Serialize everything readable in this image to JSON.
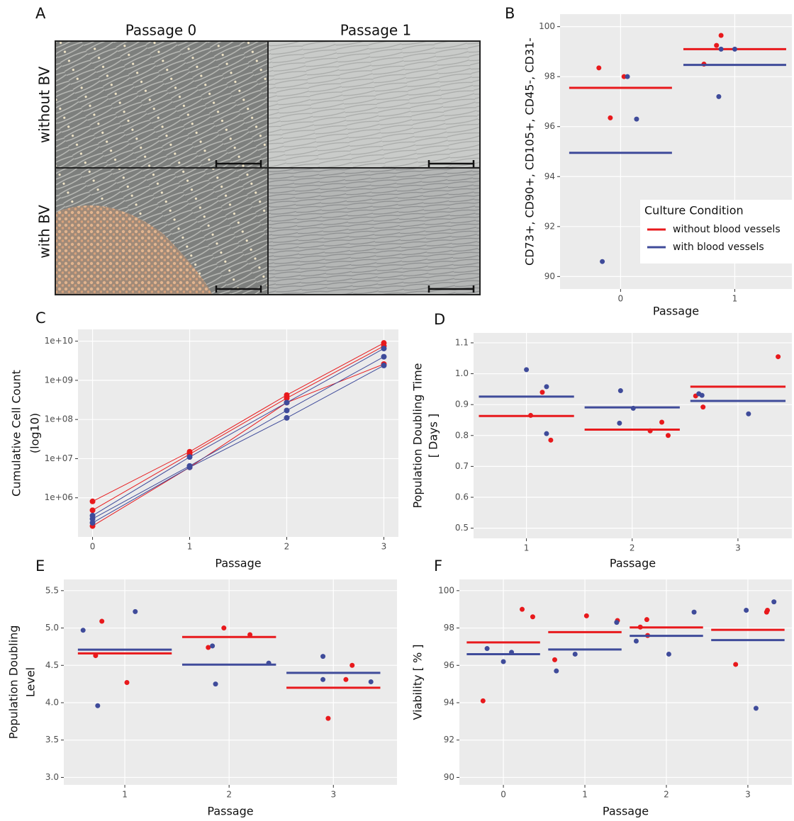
{
  "image_panel": {
    "letter": "A",
    "columns": [
      "Passage 0",
      "Passage 1"
    ],
    "rows": [
      "without BV",
      "with BV"
    ]
  },
  "chart_data": [
    {
      "panel": "B",
      "type": "dot-mean",
      "ylabel": [
        "CD73+, CD90+, CD105+, CD45-, CD31-"
      ],
      "xlabel": "Passage",
      "xlim": [
        -0.53,
        1.5
      ],
      "ylim": [
        89.5,
        100.5
      ],
      "xticks": [
        0,
        1
      ],
      "yticks": [
        90,
        92,
        94,
        96,
        98,
        100
      ],
      "grid": true,
      "legend": "bottom-right",
      "legend_title": "Culture Condition",
      "series": [
        {
          "name": "without blood vessels",
          "color": "#e8191c",
          "x": [
            -0.19,
            -0.09,
            0.03,
            0.73,
            0.84,
            0.88
          ],
          "values": [
            98.35,
            96.35,
            98.0,
            98.5,
            99.25,
            99.65
          ],
          "means": [
            97.55,
            99.1
          ]
        },
        {
          "name": "with blood vessels",
          "color": "#3f4b9a",
          "x": [
            -0.16,
            0.06,
            0.14,
            0.86,
            0.88,
            1.0
          ],
          "values": [
            90.6,
            98.0,
            96.3,
            97.2,
            99.1,
            99.1
          ],
          "means": [
            94.95,
            98.47
          ]
        }
      ]
    },
    {
      "panel": "C",
      "type": "line",
      "log_y": true,
      "ylabel": [
        "Cumulative Cell Count",
        "(log10)"
      ],
      "xlabel": "Passage",
      "x": [
        0,
        1,
        2,
        3
      ],
      "xlim": [
        -0.15,
        3.15
      ],
      "ylim": [
        100000,
        20000000000
      ],
      "xticks": [
        0,
        1,
        2,
        3
      ],
      "yticks": [
        {
          "value": 1000000,
          "label": "1e+06"
        },
        {
          "value": 10000000,
          "label": "1e+07"
        },
        {
          "value": 100000000,
          "label": "1e+08"
        },
        {
          "value": 1000000000,
          "label": "1e+09"
        },
        {
          "value": 10000000000,
          "label": "1e+10"
        }
      ],
      "grid": true,
      "series": [
        {
          "color": "#e8191c",
          "values": [
            810000,
            15000000,
            420000000,
            9000000000
          ]
        },
        {
          "color": "#e8191c",
          "values": [
            480000,
            13000000,
            350000000,
            7500000000
          ]
        },
        {
          "color": "#e8191c",
          "values": [
            190000,
            6000000,
            270000000,
            2600000000
          ]
        },
        {
          "color": "#3f4b9a",
          "values": [
            350000,
            11000000,
            270000000,
            6500000000
          ]
        },
        {
          "color": "#3f4b9a",
          "values": [
            290000,
            6500000,
            170000000,
            4000000000
          ]
        },
        {
          "color": "#3f4b9a",
          "values": [
            230000,
            6000000,
            110000000,
            2400000000
          ]
        }
      ]
    },
    {
      "panel": "D",
      "type": "dot-mean",
      "ylabel": [
        "Population Doubling Time",
        "[ Days ]"
      ],
      "xlabel": "Passage",
      "xlim": [
        0.5,
        3.51
      ],
      "ylim": [
        0.467,
        1.132
      ],
      "xticks": [
        1,
        2,
        3
      ],
      "yticks": [
        0.5,
        0.6,
        0.7,
        0.8,
        0.9,
        {
          "value": 1,
          "label": "1.0"
        },
        1.1
      ],
      "grid": true,
      "series": [
        {
          "color": "#e8191c",
          "x": [
            1.15,
            1.04,
            1.23,
            2.28,
            2.17,
            2.34,
            2.6,
            2.67,
            3.38
          ],
          "values": [
            0.94,
            0.865,
            0.785,
            0.843,
            0.815,
            0.8,
            0.928,
            0.892,
            1.055
          ],
          "means": [
            0.863,
            0.819,
            0.958
          ]
        },
        {
          "color": "#3f4b9a",
          "x": [
            1.0,
            1.19,
            1.19,
            1.89,
            2.01,
            1.88,
            2.63,
            2.66,
            3.1
          ],
          "values": [
            1.013,
            0.958,
            0.806,
            0.945,
            0.888,
            0.84,
            0.935,
            0.93,
            0.87
          ],
          "means": [
            0.926,
            0.891,
            0.912
          ]
        }
      ]
    },
    {
      "panel": "E",
      "type": "dot-mean",
      "ylabel": [
        "Population Doubling",
        "Level"
      ],
      "xlabel": "Passage",
      "xlim": [
        0.415,
        3.61
      ],
      "ylim": [
        2.9,
        5.65
      ],
      "xticks": [
        1,
        2,
        3
      ],
      "yticks": [
        {
          "value": 3,
          "label": "3.0"
        },
        3.5,
        {
          "value": 4,
          "label": "4.0"
        },
        4.5,
        {
          "value": 5,
          "label": "5.0"
        },
        5.5
      ],
      "grid": true,
      "series": [
        {
          "color": "#e8191c",
          "x": [
            0.72,
            0.78,
            1.02,
            1.8,
            1.95,
            2.2,
            2.95,
            3.12,
            3.18
          ],
          "values": [
            4.63,
            5.09,
            4.27,
            4.74,
            5.0,
            4.91,
            3.79,
            4.31,
            4.5
          ],
          "means": [
            4.66,
            4.88,
            4.2
          ]
        },
        {
          "color": "#3f4b9a",
          "x": [
            0.6,
            0.74,
            1.1,
            1.84,
            1.87,
            2.38,
            2.9,
            2.9,
            3.36
          ],
          "values": [
            4.97,
            3.96,
            5.22,
            4.76,
            4.25,
            4.53,
            4.62,
            4.31,
            4.28
          ],
          "means": [
            4.71,
            4.51,
            4.4
          ]
        }
      ]
    },
    {
      "panel": "F",
      "type": "dot-mean",
      "ylabel": [
        "Viability [ % ]"
      ],
      "xlabel": "Passage",
      "xlim": [
        -0.54,
        3.54
      ],
      "ylim": [
        89.6,
        100.6
      ],
      "xticks": [
        0,
        1,
        2,
        3
      ],
      "yticks": [
        90,
        92,
        94,
        96,
        98,
        100
      ],
      "grid": true,
      "series": [
        {
          "color": "#e8191c",
          "x": [
            -0.25,
            0.23,
            0.36,
            0.63,
            1.02,
            1.4,
            1.68,
            1.76,
            1.77,
            2.85,
            3.23,
            3.24
          ],
          "values": [
            94.1,
            99.0,
            98.6,
            96.3,
            98.65,
            98.4,
            98.05,
            98.45,
            97.6,
            96.05,
            98.85,
            98.95
          ],
          "means": [
            97.23,
            97.78,
            98.03,
            97.9
          ]
        },
        {
          "color": "#3f4b9a",
          "x": [
            -0.2,
            0.0,
            0.1,
            0.65,
            0.88,
            1.39,
            1.63,
            2.03,
            2.34,
            2.98,
            3.1,
            3.32
          ],
          "values": [
            96.9,
            96.2,
            96.7,
            95.7,
            96.6,
            98.3,
            97.3,
            96.6,
            98.85,
            98.95,
            93.7,
            99.4
          ],
          "means": [
            96.6,
            96.85,
            97.58,
            97.35
          ]
        }
      ]
    }
  ]
}
